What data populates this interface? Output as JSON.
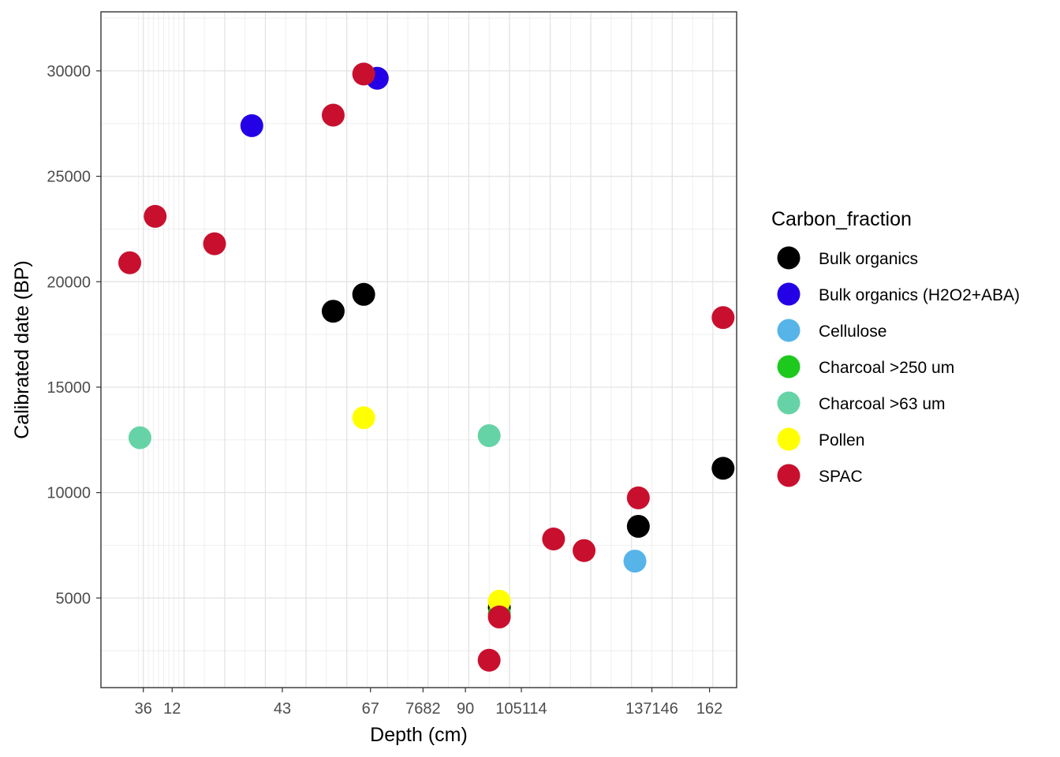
{
  "chart_data": {
    "type": "scatter",
    "xlabel": "Depth (cm)",
    "ylabel": "Calibrated date (BP)",
    "xlim": [
      -12.5,
      175
    ],
    "ylim": [
      750,
      32800
    ],
    "x_breaks": [
      0,
      12,
      24,
      36,
      48,
      60,
      72,
      84,
      96,
      108,
      120,
      132,
      144,
      156,
      168
    ],
    "x_minor_breaks": [
      -1.5,
      1.5,
      3,
      4.5,
      6,
      7.5,
      9,
      10.5,
      18,
      30,
      42,
      54,
      66,
      78,
      90,
      102,
      114,
      126,
      138,
      150,
      162
    ],
    "x_ticks": [
      {
        "value": 0,
        "label": "36"
      },
      {
        "value": 8.5,
        "label": "12"
      },
      {
        "value": 41,
        "label": "43"
      },
      {
        "value": 67,
        "label": "67"
      },
      {
        "value": 82.5,
        "label": "7682"
      },
      {
        "value": 95,
        "label": "90"
      },
      {
        "value": 111.5,
        "label": "105114"
      },
      {
        "value": 150,
        "label": "137146"
      },
      {
        "value": 167,
        "label": "162"
      }
    ],
    "y_ticks": [
      5000,
      10000,
      15000,
      20000,
      25000,
      30000
    ],
    "legend_title": "Carbon_fraction",
    "legend_position": "right",
    "grid": true,
    "series": [
      {
        "name": "Bulk organics",
        "color": "#000000",
        "points": [
          [
            56,
            18600
          ],
          [
            65,
            19400
          ],
          [
            105,
            4550
          ],
          [
            146,
            8400
          ],
          [
            171,
            11150
          ]
        ]
      },
      {
        "name": "Bulk organics (H2O2+ABA)",
        "color": "#2300e6",
        "points": [
          [
            32,
            27400
          ],
          [
            69,
            29650
          ]
        ]
      },
      {
        "name": "Cellulose",
        "color": "#56b4e9",
        "points": [
          [
            145,
            6750
          ]
        ]
      },
      {
        "name": "Charcoal >250 um",
        "color": "#1ec91e",
        "points": [
          [
            105,
            4250
          ]
        ]
      },
      {
        "name": "Charcoal >63 um",
        "color": "#66d3a6",
        "points": [
          [
            -1,
            12600
          ],
          [
            102,
            12700
          ]
        ]
      },
      {
        "name": "Pollen",
        "color": "#ffff00",
        "points": [
          [
            65,
            13550
          ],
          [
            105,
            4850
          ]
        ]
      },
      {
        "name": "SPAC",
        "color": "#c8102e",
        "points": [
          [
            -4,
            20900
          ],
          [
            3.5,
            23100
          ],
          [
            21,
            21800
          ],
          [
            56,
            27900
          ],
          [
            65,
            29850
          ],
          [
            102,
            2050
          ],
          [
            105,
            4100
          ],
          [
            121,
            7800
          ],
          [
            130,
            7250
          ],
          [
            146,
            9750
          ],
          [
            171,
            18300
          ]
        ]
      }
    ]
  }
}
